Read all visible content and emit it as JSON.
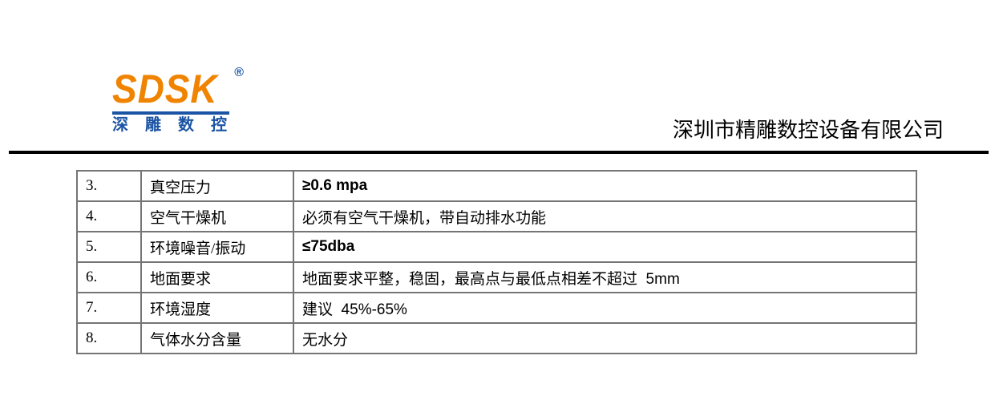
{
  "header": {
    "logo": {
      "brand": "SDSK",
      "registered": "®",
      "subtitle": "深雕数控"
    },
    "company_name": "深圳市精雕数控设备有限公司"
  },
  "colors": {
    "brand_orange": "#F08300",
    "brand_blue": "#1B54A5",
    "table_border": "#757575",
    "header_rule": "#000000"
  },
  "table": {
    "rows": [
      {
        "num": "3.",
        "label": "真空压力",
        "value": "≥0.6 mpa",
        "value_class": "val-sans"
      },
      {
        "num": "4.",
        "label": "空气干燥机",
        "value": "必须有空气干燥机，带自动排水功能",
        "value_class": "val-serif"
      },
      {
        "num": "5.",
        "label": "环境噪音/振动",
        "value": "≤75dba",
        "value_class": "val-sans"
      },
      {
        "num": "6.",
        "label": "地面要求",
        "value": "地面要求平整，稳固，最高点与最低点相差不超过  5mm",
        "value_class": "val-mixed"
      },
      {
        "num": "7.",
        "label": "环境湿度",
        "value": "建议  45%-65%",
        "value_class": "val-mixed"
      },
      {
        "num": "8.",
        "label": "气体水分含量",
        "value": "无水分",
        "value_class": "val-serif"
      }
    ]
  }
}
